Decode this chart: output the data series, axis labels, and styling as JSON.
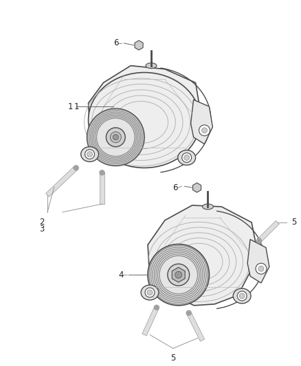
{
  "bg_color": "#ffffff",
  "lc": "#8a8a8a",
  "dc": "#4a4a4a",
  "fc_body": "#f0f0f0",
  "fc_light": "#f8f8f8",
  "fc_dark": "#d8d8d8",
  "label_fs": 8.5,
  "label_color": "#222222",
  "fig_width": 4.38,
  "fig_height": 5.33,
  "dpi": 100
}
